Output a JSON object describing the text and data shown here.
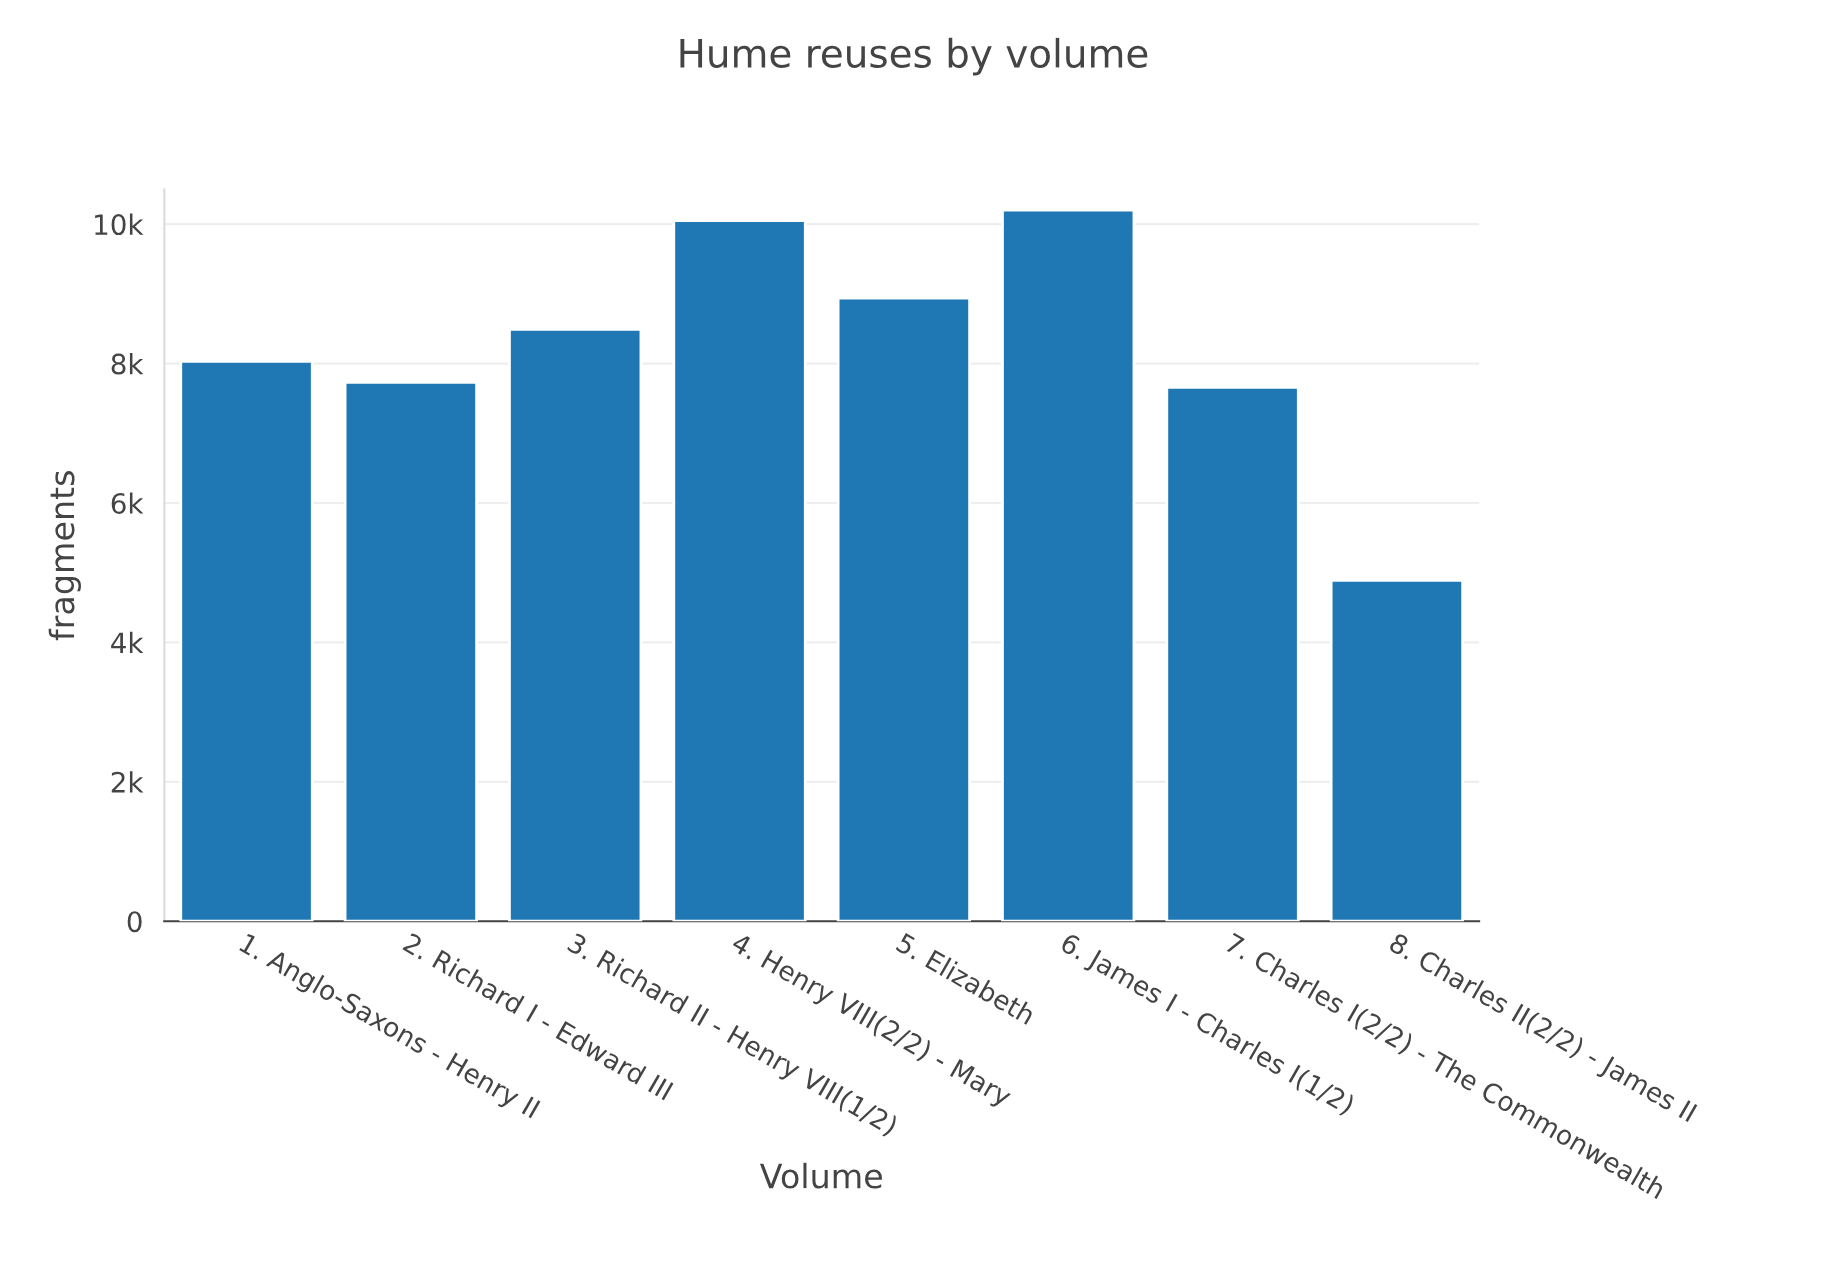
{
  "chart_data": {
    "type": "bar",
    "title": "Hume reuses by volume",
    "xlabel": "Volume",
    "ylabel": "fragments",
    "categories": [
      "1. Anglo-Saxons - Henry II",
      "2. Richard I - Edward III",
      "3. Richard II - Henry VIII(1/2)",
      "4. Henry VIII(2/2) - Mary",
      "5. Elizabeth",
      "6. James I - Charles I(1/2)",
      "7. Charles I(2/2) - The Commonwealth",
      "8. Charles II(2/2) - James II"
    ],
    "values": [
      8030,
      7730,
      8490,
      10050,
      8940,
      10200,
      7660,
      4890
    ],
    "color": "#1f77b4",
    "ylim": [
      0,
      10500
    ],
    "yticks": [
      0,
      {
        "value": 2000,
        "label": "2k"
      },
      {
        "value": 4000,
        "label": "4k"
      },
      {
        "value": 6000,
        "label": "6k"
      },
      {
        "value": 8000,
        "label": "8k"
      },
      {
        "value": 10000,
        "label": "10k"
      }
    ],
    "grid": "y"
  }
}
